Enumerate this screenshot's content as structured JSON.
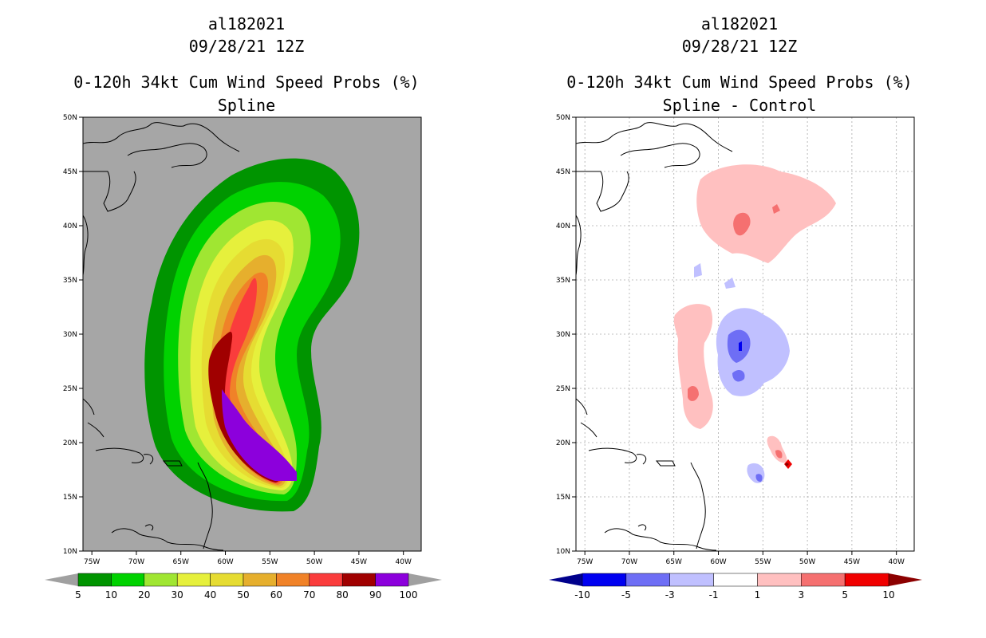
{
  "panels": [
    {
      "storm_id": "al182021",
      "datetime": "09/28/21 12Z",
      "product": "0-120h 34kt Cum Wind Speed Probs (%)",
      "subtitle": "Spline",
      "map_background": "#a6a6a6"
    },
    {
      "storm_id": "al182021",
      "datetime": "09/28/21 12Z",
      "product": "0-120h 34kt Cum Wind Speed Probs (%)",
      "subtitle": "Spline - Control",
      "map_background": "#ffffff"
    }
  ],
  "chart_data": [
    {
      "type": "heatmap",
      "title": "0-120h 34kt Cum Wind Speed Probs (%)",
      "subtitle": "Spline",
      "x_ticks": [
        "75W",
        "70W",
        "65W",
        "60W",
        "55W",
        "50W",
        "45W",
        "40W"
      ],
      "y_ticks": [
        "10N",
        "15N",
        "20N",
        "25N",
        "30N",
        "35N",
        "40N",
        "45N",
        "50N"
      ],
      "xlim_lon": [
        -76,
        -38
      ],
      "ylim_lat": [
        10,
        50
      ],
      "grid": false,
      "units": "%",
      "colorbar": {
        "labels": [
          "5",
          "10",
          "20",
          "30",
          "40",
          "50",
          "60",
          "70",
          "80",
          "90",
          "100"
        ],
        "colors": [
          "#009400",
          "#00d200",
          "#a0e632",
          "#e6f03c",
          "#e6dc32",
          "#e6af2d",
          "#f08228",
          "#fa3c3c",
          "#a00000",
          "#8c00dc"
        ],
        "extend_color": "#a0a0a0"
      }
    },
    {
      "type": "heatmap",
      "title": "0-120h 34kt Cum Wind Speed Probs (%)",
      "subtitle": "Spline - Control",
      "x_ticks": [
        "75W",
        "70W",
        "65W",
        "60W",
        "55W",
        "50W",
        "45W",
        "40W"
      ],
      "y_ticks": [
        "10N",
        "15N",
        "20N",
        "25N",
        "30N",
        "35N",
        "40N",
        "45N",
        "50N"
      ],
      "xlim_lon": [
        -76,
        -38
      ],
      "ylim_lat": [
        10,
        50
      ],
      "grid": true,
      "units": "%",
      "colorbar": {
        "labels": [
          "-10",
          "-5",
          "-3",
          "-1",
          "1",
          "3",
          "5",
          "10"
        ],
        "colors": [
          "#0000f0",
          "#6e6ef5",
          "#c0c0ff",
          "#ffffff",
          "#ffc0c0",
          "#f57070",
          "#f00000"
        ],
        "extend_low": "#00008c",
        "extend_high": "#8c0000"
      }
    }
  ]
}
